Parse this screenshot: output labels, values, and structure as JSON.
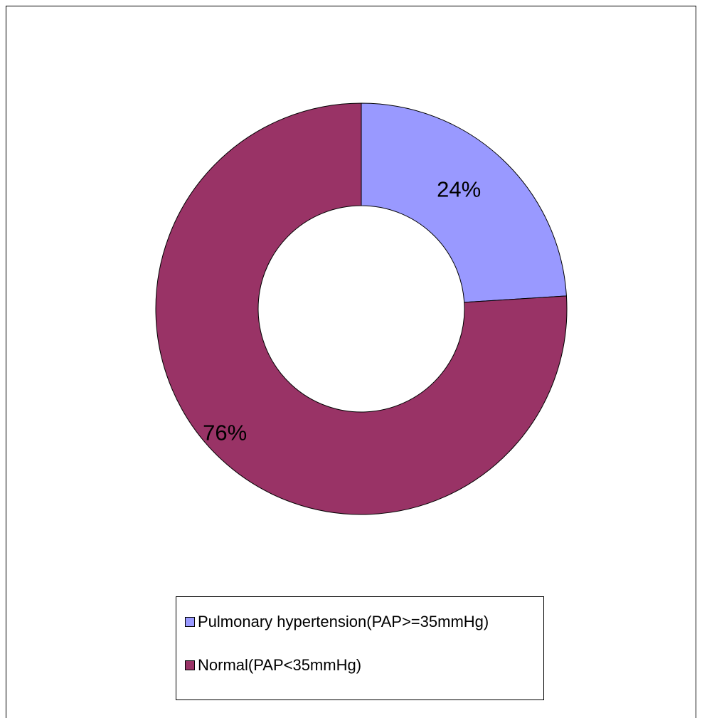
{
  "chart_data": {
    "type": "pie",
    "variant": "donut",
    "categories": [
      "Pulmonary hypertension(PAP>=35mmHg)",
      "Normal(PAP<35mmHg)"
    ],
    "values": [
      24,
      76
    ],
    "data_labels": [
      "24%",
      "76%"
    ],
    "colors": [
      "#9999ff",
      "#993366"
    ],
    "legend_placement": "bottom"
  }
}
